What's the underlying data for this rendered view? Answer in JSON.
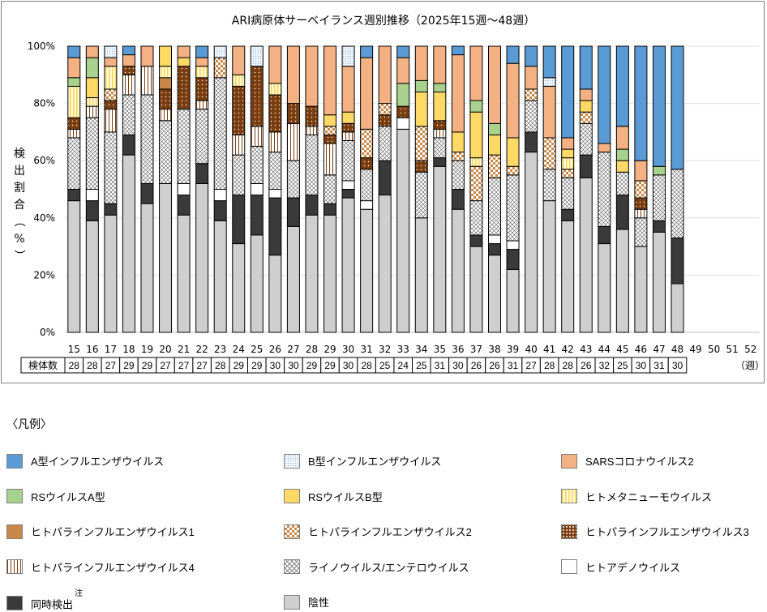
{
  "chart_data": {
    "type": "bar",
    "stacked": true,
    "title": "ARI病原体サーベイランス週別推移（2025年15週～48週）",
    "xlabel": "（週）",
    "ylabel": "検出割合（%）",
    "ylim": [
      0,
      100
    ],
    "yticks": [
      "0%",
      "20%",
      "40%",
      "60%",
      "80%",
      "100%"
    ],
    "grid": true,
    "categories": [
      "15",
      "16",
      "17",
      "18",
      "19",
      "20",
      "21",
      "22",
      "23",
      "24",
      "25",
      "26",
      "27",
      "28",
      "29",
      "30",
      "31",
      "32",
      "33",
      "34",
      "35",
      "36",
      "37",
      "38",
      "39",
      "40",
      "41",
      "42",
      "43",
      "44",
      "45",
      "46",
      "47",
      "48",
      "49",
      "50",
      "51",
      "52"
    ],
    "specimen_count_label": "検体数",
    "specimen_counts": [
      28,
      28,
      27,
      29,
      29,
      27,
      27,
      27,
      28,
      29,
      29,
      30,
      30,
      29,
      29,
      30,
      28,
      25,
      24,
      25,
      31,
      30,
      26,
      26,
      31,
      27,
      28,
      28,
      26,
      32,
      25,
      30,
      31,
      30
    ],
    "series": [
      {
        "key": "neg",
        "name": "陰性",
        "color": "#d0cfcf",
        "pattern": "solid"
      },
      {
        "key": "co",
        "name": "同時検出",
        "note": "注",
        "color": "#3a3a3a",
        "pattern": "solid"
      },
      {
        "key": "adeno",
        "name": "ヒトアデノウイルス",
        "color": "#ffffff",
        "pattern": "solid"
      },
      {
        "key": "rhino",
        "name": "ライノウイルス/エンテロウイルス",
        "color": "#ffffff",
        "pattern": "cross"
      },
      {
        "key": "para4",
        "name": "ヒトパラインフルエンザウイルス4",
        "color": "#7a3d10",
        "pattern": "vstripe"
      },
      {
        "key": "para3",
        "name": "ヒトパラインフルエンザウイルス3",
        "color": "#7a3d10",
        "pattern": "dots"
      },
      {
        "key": "para2",
        "name": "ヒトパラインフルエンザウイルス2",
        "color": "#c8884a",
        "pattern": "checker"
      },
      {
        "key": "para1",
        "name": "ヒトパラインフルエンザウイルス1",
        "color": "#c8884a",
        "pattern": "solid"
      },
      {
        "key": "hmpv",
        "name": "ヒトメタニューモウイルス",
        "color": "#fde98a",
        "pattern": "yvstripe"
      },
      {
        "key": "rsb",
        "name": "RSウイルスB型",
        "color": "#ffd966",
        "pattern": "solid"
      },
      {
        "key": "rsa",
        "name": "RSウイルスA型",
        "color": "#a9d18e",
        "pattern": "solid"
      },
      {
        "key": "sars",
        "name": "SARSコロナウイルス2",
        "color": "#f4b183",
        "pattern": "solid"
      },
      {
        "key": "fluB",
        "name": "B型インフルエンザウイルス",
        "color": "#deebf7",
        "pattern": "bdots"
      },
      {
        "key": "fluA",
        "name": "A型インフルエンザウイルス",
        "color": "#5b9bd5",
        "pattern": "solid"
      }
    ],
    "cumulative_tops_percent": [
      {
        "neg": 46,
        "co": 50,
        "rhino": 68,
        "para4": 71,
        "para3": 75,
        "hmpv": 86,
        "rsa": 89,
        "sars": 96,
        "fluA": 100
      },
      {
        "neg": 39,
        "co": 46,
        "adeno": 50,
        "rhino": 75,
        "para4": 79,
        "hmpv": 82,
        "rsb": 89,
        "rsa": 96,
        "sars": 100
      },
      {
        "neg": 41,
        "co": 45,
        "rhino": 70,
        "para4": 78,
        "para3": 81,
        "para2": 85,
        "hmpv": 93,
        "sars": 96,
        "fluB": 100
      },
      {
        "neg": 62,
        "co": 69,
        "rhino": 83,
        "para4": 90,
        "para3": 93,
        "sars": 97,
        "fluA": 100
      },
      {
        "neg": 45,
        "co": 52,
        "rhino": 83,
        "para4": 93,
        "sars": 100
      },
      {
        "neg": 52,
        "rhino": 74,
        "para4": 78,
        "para3": 85,
        "para1": 89,
        "hmpv": 93,
        "rsb": 100
      },
      {
        "neg": 41,
        "co": 48,
        "adeno": 52,
        "rhino": 78,
        "para3": 93,
        "rsb": 96,
        "sars": 100
      },
      {
        "neg": 52,
        "co": 59,
        "rhino": 78,
        "para4": 81,
        "para3": 89,
        "hmpv": 93,
        "sars": 96,
        "fluA": 100
      },
      {
        "neg": 39,
        "co": 46,
        "adeno": 50,
        "rhino": 89,
        "para2": 96,
        "fluB": 100
      },
      {
        "neg": 31,
        "co": 48,
        "rhino": 62,
        "para4": 69,
        "para3": 86,
        "hmpv": 90,
        "sars": 100
      },
      {
        "neg": 34,
        "co": 48,
        "adeno": 52,
        "rhino": 65,
        "para4": 72,
        "para3": 93,
        "fluB": 100
      },
      {
        "neg": 27,
        "co": 47,
        "adeno": 50,
        "rhino": 63,
        "para4": 70,
        "para3": 83,
        "hmpv": 87,
        "sars": 100
      },
      {
        "neg": 37,
        "co": 47,
        "rhino": 60,
        "para4": 73,
        "para3": 80,
        "sars": 100
      },
      {
        "neg": 41,
        "co": 48,
        "rhino": 69,
        "para4": 72,
        "para3": 79,
        "sars": 100
      },
      {
        "neg": 41,
        "co": 45,
        "rhino": 55,
        "para4": 66,
        "para3": 69,
        "para2": 72,
        "rsb": 76,
        "sars": 100
      },
      {
        "neg": 47,
        "co": 50,
        "adeno": 53,
        "rhino": 67,
        "para4": 70,
        "para3": 73,
        "rsb": 77,
        "sars": 93,
        "fluB": 100
      },
      {
        "neg": 43,
        "adeno": 46,
        "rhino": 57,
        "para3": 61,
        "para2": 71,
        "sars": 96,
        "fluA": 100
      },
      {
        "neg": 48,
        "co": 60,
        "rhino": 72,
        "para3": 76,
        "para2": 80,
        "sars": 100
      },
      {
        "neg": 71,
        "adeno": 75,
        "para3": 79,
        "rsa": 87,
        "sars": 96,
        "fluA": 100
      },
      {
        "neg": 40,
        "rhino": 56,
        "para3": 60,
        "para2": 72,
        "rsb": 84,
        "rsa": 88,
        "sars": 100
      },
      {
        "neg": 58,
        "co": 61,
        "rhino": 68,
        "para4": 71,
        "para3": 74,
        "rsb": 84,
        "rsa": 87,
        "sars": 100
      },
      {
        "neg": 43,
        "co": 50,
        "rhino": 60,
        "para2": 63,
        "rsb": 70,
        "sars": 97,
        "fluA": 100
      },
      {
        "neg": 30,
        "co": 34,
        "rhino": 46,
        "para2": 58,
        "hmpv": 61,
        "rsb": 77,
        "rsa": 81,
        "sars": 100
      },
      {
        "neg": 27,
        "co": 31,
        "adeno": 34,
        "rhino": 54,
        "para2": 62,
        "rsb": 69,
        "rsa": 73,
        "sars": 100
      },
      {
        "neg": 22,
        "co": 29,
        "adeno": 32,
        "rhino": 55,
        "para2": 58,
        "rsb": 68,
        "sars": 94,
        "fluA": 100
      },
      {
        "neg": 63,
        "co": 70,
        "rhino": 81,
        "para2": 85,
        "sars": 93,
        "fluA": 100
      },
      {
        "neg": 46,
        "rhino": 57,
        "para2": 68,
        "sars": 86,
        "fluB": 89,
        "fluA": 100
      },
      {
        "neg": 39,
        "co": 43,
        "rhino": 54,
        "para2": 57,
        "hmpv": 61,
        "rsb": 64,
        "sars": 68,
        "fluA": 100
      },
      {
        "neg": 54,
        "co": 62,
        "rhino": 73,
        "para2": 77,
        "rsb": 81,
        "sars": 85,
        "fluA": 100
      },
      {
        "neg": 31,
        "co": 37,
        "rhino": 63,
        "sars": 66,
        "fluA": 100
      },
      {
        "neg": 36,
        "co": 48,
        "rhino": 56,
        "rsb": 60,
        "rsa": 64,
        "sars": 72,
        "fluA": 100
      },
      {
        "neg": 30,
        "rhino": 40,
        "para4": 43,
        "para3": 47,
        "para2": 53,
        "sars": 60,
        "fluA": 100
      },
      {
        "neg": 35,
        "co": 39,
        "rhino": 55,
        "rsa": 58,
        "fluA": 100
      },
      {
        "neg": 17,
        "co": 33,
        "rhino": 57,
        "fluA": 100
      }
    ]
  },
  "legend": {
    "title": "〈凡例〉",
    "items": [
      {
        "key": "fluA",
        "label": "A型インフルエンザウイルス"
      },
      {
        "key": "fluB",
        "label": "B型インフルエンザウイルス"
      },
      {
        "key": "sars",
        "label": "SARSコロナウイルス2"
      },
      {
        "key": "rsa",
        "label": "RSウイルスA型"
      },
      {
        "key": "rsb",
        "label": "RSウイルスB型"
      },
      {
        "key": "hmpv",
        "label": "ヒトメタニューモウイルス"
      },
      {
        "key": "para1",
        "label": "ヒトパラインフルエンザウイルス1"
      },
      {
        "key": "para2",
        "label": "ヒトパラインフルエンザウイルス2"
      },
      {
        "key": "para3",
        "label": "ヒトパラインフルエンザウイルス3"
      },
      {
        "key": "para4",
        "label": "ヒトパラインフルエンザウイルス4"
      },
      {
        "key": "rhino",
        "label": "ライノウイルス/エンテロウイルス"
      },
      {
        "key": "adeno",
        "label": "ヒトアデノウイルス"
      },
      {
        "key": "co",
        "label": "同時検出",
        "note": "注"
      },
      {
        "key": "neg",
        "label": "陰性"
      }
    ]
  }
}
